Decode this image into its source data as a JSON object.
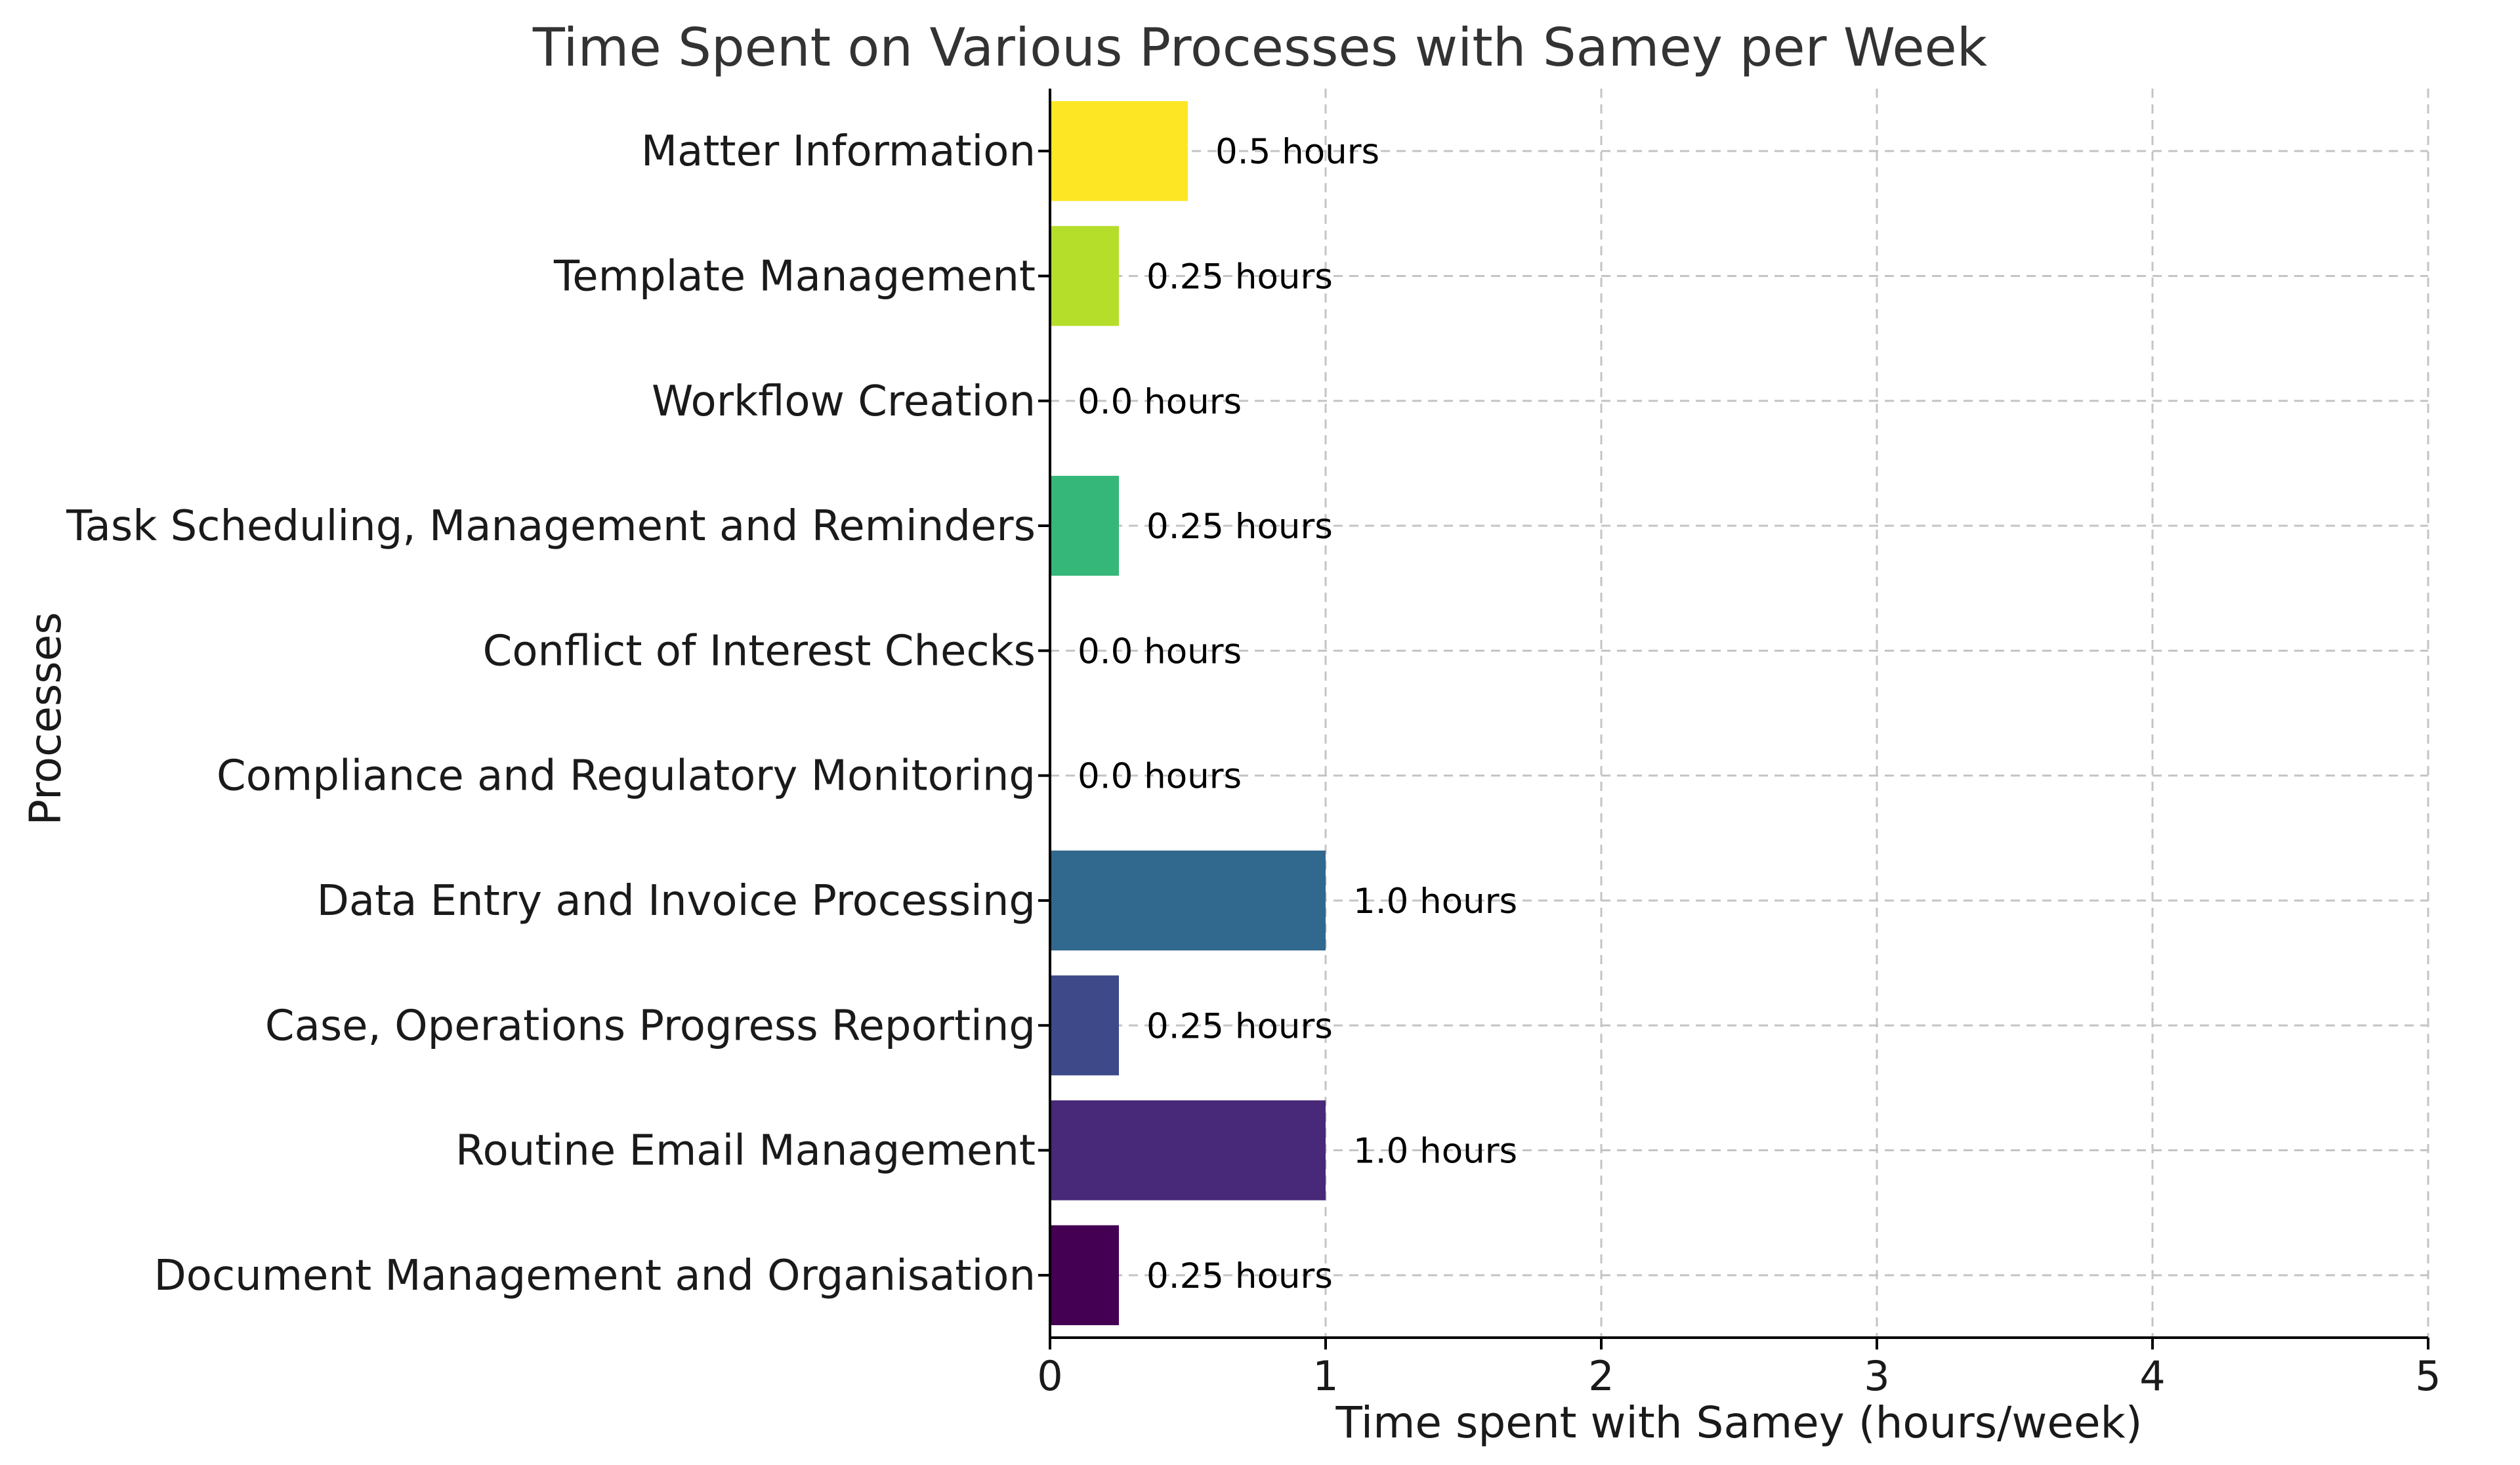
{
  "chart_data": {
    "type": "bar",
    "orientation": "horizontal",
    "title": "Time Spent on Various Processes with Samey per Week",
    "xlabel": "Time spent with Samey (hours/week)",
    "ylabel": "Processes",
    "xlim": [
      0,
      5
    ],
    "xticks": [
      "0",
      "1",
      "2",
      "3",
      "4",
      "5"
    ],
    "grid": true,
    "categories": [
      "Document Management and Organisation",
      "Routine Email Management",
      "Case, Operations Progress Reporting",
      "Data Entry and Invoice Processing",
      "Compliance and Regulatory Monitoring",
      "Conflict of Interest Checks",
      "Task Scheduling, Management and Reminders",
      "Workflow Creation",
      "Template Management",
      "Matter Information"
    ],
    "values": [
      0.25,
      1.0,
      0.25,
      1.0,
      0.0,
      0.0,
      0.25,
      0.0,
      0.25,
      0.5
    ],
    "data_labels": [
      "0.25 hours",
      "1.0 hours",
      "0.25 hours",
      "1.0 hours",
      "0.0 hours",
      "0.0 hours",
      "0.25 hours",
      "0.0 hours",
      "0.25 hours",
      "0.5 hours"
    ],
    "colors": [
      "#440154",
      "#482878",
      "#3e4989",
      "#31688e",
      "#26828e",
      "#1f9e89",
      "#35b779",
      "#6ece58",
      "#b5de2b",
      "#fde725"
    ]
  }
}
